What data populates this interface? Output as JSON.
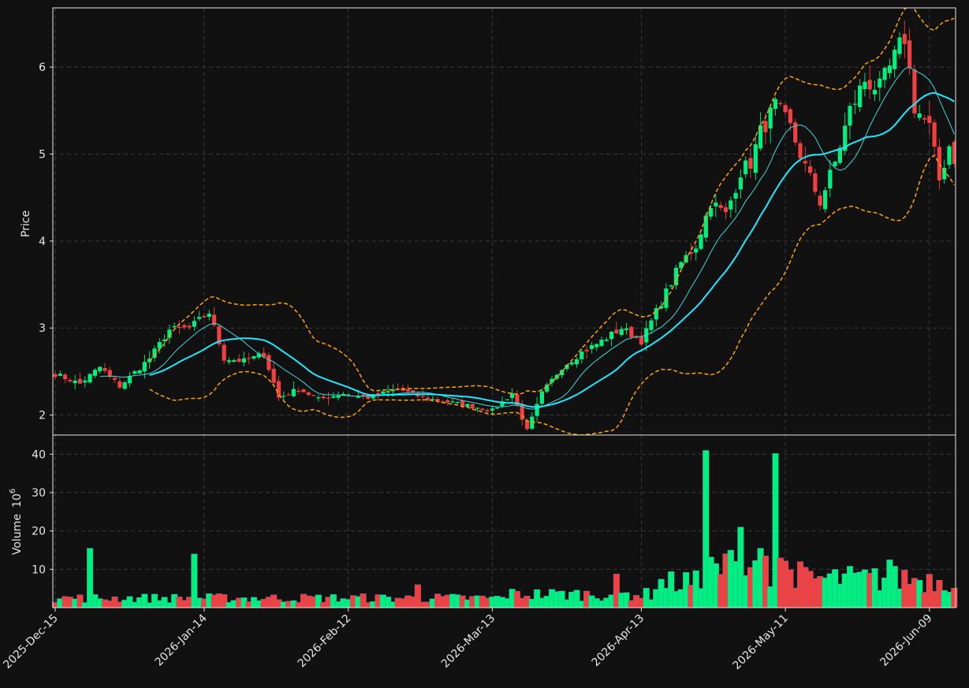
{
  "chart_data": {
    "type": "candlestick",
    "title": "",
    "colors": {
      "background": "#111111",
      "up": "#00f080",
      "down": "#f04040",
      "ma_fast": "#40d8d8",
      "ma_slow": "#20e8ff",
      "bands": "#ffa500",
      "grid": "#3a3a3a",
      "axis": "#e6e6e6"
    },
    "price_panel": {
      "ylabel": "Price",
      "ylim": [
        1.77,
        6.68
      ],
      "yticks": [
        "2",
        "3",
        "4",
        "5",
        "6"
      ],
      "grid": true
    },
    "volume_panel": {
      "ylabel": "Volume",
      "unit": "10",
      "unit_exp": "6",
      "ylim": [
        0,
        45
      ],
      "yticks": [
        "10",
        "20",
        "30",
        "40"
      ],
      "grid": true
    },
    "x_axis": {
      "start": "2025-12-15",
      "end": "2026-06-12",
      "ticks": [
        "2025-Dec-15",
        "2026-Jan-14",
        "2026-Feb-12",
        "2026-Mar-13",
        "2026-Apr-13",
        "2026-May-11",
        "2026-Jun-09"
      ]
    },
    "anchor_close": [
      [
        0,
        2.47
      ],
      [
        5,
        2.36
      ],
      [
        9,
        2.55
      ],
      [
        13,
        2.33
      ],
      [
        19,
        2.65
      ],
      [
        23,
        2.98
      ],
      [
        27,
        3.0
      ],
      [
        31,
        3.18
      ],
      [
        34,
        2.65
      ],
      [
        38,
        2.62
      ],
      [
        42,
        2.7
      ],
      [
        45,
        2.2
      ],
      [
        49,
        2.3
      ],
      [
        53,
        2.18
      ],
      [
        58,
        2.25
      ],
      [
        63,
        2.2
      ],
      [
        69,
        2.3
      ],
      [
        74,
        2.2
      ],
      [
        79,
        2.15
      ],
      [
        84,
        2.1
      ],
      [
        88,
        2.05
      ],
      [
        92,
        2.25
      ],
      [
        95,
        1.82
      ],
      [
        98,
        2.25
      ],
      [
        102,
        2.55
      ],
      [
        106,
        2.72
      ],
      [
        110,
        2.85
      ],
      [
        114,
        3.0
      ],
      [
        118,
        2.85
      ],
      [
        122,
        3.3
      ],
      [
        126,
        3.75
      ],
      [
        129,
        3.95
      ],
      [
        132,
        4.45
      ],
      [
        135,
        4.3
      ],
      [
        138,
        4.8
      ],
      [
        140,
        4.9
      ],
      [
        142,
        5.25
      ],
      [
        145,
        5.55
      ],
      [
        148,
        5.3
      ],
      [
        151,
        4.85
      ],
      [
        154,
        4.45
      ],
      [
        157,
        4.9
      ],
      [
        160,
        5.5
      ],
      [
        163,
        5.85
      ],
      [
        166,
        5.75
      ],
      [
        169,
        6.1
      ],
      [
        171,
        6.35
      ],
      [
        173,
        5.55
      ],
      [
        176,
        5.3
      ],
      [
        178,
        4.7
      ],
      [
        180,
        5.1
      ],
      [
        181,
        4.95
      ]
    ],
    "volume_spikes": [
      [
        7,
        15.5
      ],
      [
        28,
        14.0
      ],
      [
        73,
        6.0
      ],
      [
        113,
        8.8
      ],
      [
        127,
        9.2
      ],
      [
        131,
        41.0
      ],
      [
        133,
        11.5
      ],
      [
        136,
        15.0
      ],
      [
        138,
        21.0
      ],
      [
        140,
        10.5
      ],
      [
        142,
        15.5
      ],
      [
        143,
        13.5
      ],
      [
        145,
        40.2
      ],
      [
        146,
        13.0
      ],
      [
        150,
        12.0
      ],
      [
        160,
        10.8
      ],
      [
        168,
        12.5
      ],
      [
        171,
        9.8
      ]
    ],
    "volume_base": 2.5,
    "sma_fast_window": 10,
    "sma_slow_window": 20,
    "bands_window": 20,
    "bands_std": 2
  }
}
